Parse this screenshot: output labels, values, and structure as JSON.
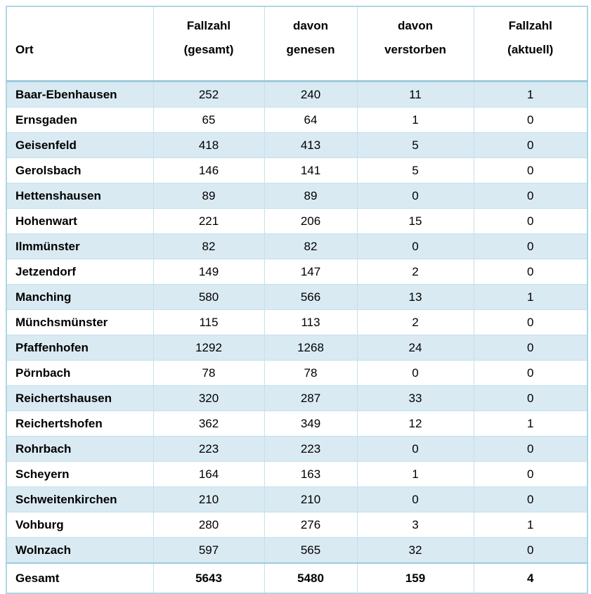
{
  "table": {
    "header": {
      "ort": "Ort",
      "gesamt": [
        "Fallzahl",
        "(gesamt)"
      ],
      "genesen": [
        "davon",
        "genesen"
      ],
      "verstorben": [
        "davon",
        "verstorben"
      ],
      "aktuell": [
        "Fallzahl",
        "(aktuell)"
      ]
    },
    "column_keys": [
      "ort",
      "gesamt",
      "genesen",
      "verstorben",
      "aktuell"
    ],
    "rows": [
      {
        "ort": "Baar-Ebenhausen",
        "gesamt": 252,
        "genesen": 240,
        "verstorben": 11,
        "aktuell": 1
      },
      {
        "ort": "Ernsgaden",
        "gesamt": 65,
        "genesen": 64,
        "verstorben": 1,
        "aktuell": 0
      },
      {
        "ort": "Geisenfeld",
        "gesamt": 418,
        "genesen": 413,
        "verstorben": 5,
        "aktuell": 0
      },
      {
        "ort": "Gerolsbach",
        "gesamt": 146,
        "genesen": 141,
        "verstorben": 5,
        "aktuell": 0
      },
      {
        "ort": "Hettenshausen",
        "gesamt": 89,
        "genesen": 89,
        "verstorben": 0,
        "aktuell": 0
      },
      {
        "ort": "Hohenwart",
        "gesamt": 221,
        "genesen": 206,
        "verstorben": 15,
        "aktuell": 0
      },
      {
        "ort": "Ilmmünster",
        "gesamt": 82,
        "genesen": 82,
        "verstorben": 0,
        "aktuell": 0
      },
      {
        "ort": "Jetzendorf",
        "gesamt": 149,
        "genesen": 147,
        "verstorben": 2,
        "aktuell": 0
      },
      {
        "ort": "Manching",
        "gesamt": 580,
        "genesen": 566,
        "verstorben": 13,
        "aktuell": 1
      },
      {
        "ort": "Münchsmünster",
        "gesamt": 115,
        "genesen": 113,
        "verstorben": 2,
        "aktuell": 0
      },
      {
        "ort": "Pfaffenhofen",
        "gesamt": 1292,
        "genesen": 1268,
        "verstorben": 24,
        "aktuell": 0
      },
      {
        "ort": "Pörnbach",
        "gesamt": 78,
        "genesen": 78,
        "verstorben": 0,
        "aktuell": 0
      },
      {
        "ort": "Reichertshausen",
        "gesamt": 320,
        "genesen": 287,
        "verstorben": 33,
        "aktuell": 0
      },
      {
        "ort": "Reichertshofen",
        "gesamt": 362,
        "genesen": 349,
        "verstorben": 12,
        "aktuell": 1
      },
      {
        "ort": "Rohrbach",
        "gesamt": 223,
        "genesen": 223,
        "verstorben": 0,
        "aktuell": 0
      },
      {
        "ort": "Scheyern",
        "gesamt": 164,
        "genesen": 163,
        "verstorben": 1,
        "aktuell": 0
      },
      {
        "ort": "Schweitenkirchen",
        "gesamt": 210,
        "genesen": 210,
        "verstorben": 0,
        "aktuell": 0
      },
      {
        "ort": "Vohburg",
        "gesamt": 280,
        "genesen": 276,
        "verstorben": 3,
        "aktuell": 1
      },
      {
        "ort": "Wolnzach",
        "gesamt": 597,
        "genesen": 565,
        "verstorben": 32,
        "aktuell": 0
      }
    ],
    "total": {
      "ort": "Gesamt",
      "gesamt": 5643,
      "genesen": 5480,
      "verstorben": 159,
      "aktuell": 4
    }
  },
  "colors": {
    "row_stripe": "#d9eaf2",
    "cell_border": "#c3e1ec",
    "strong_border": "#9fcbdd",
    "outer_border": "#aed6e4",
    "text": "#000000",
    "background": "#ffffff"
  }
}
